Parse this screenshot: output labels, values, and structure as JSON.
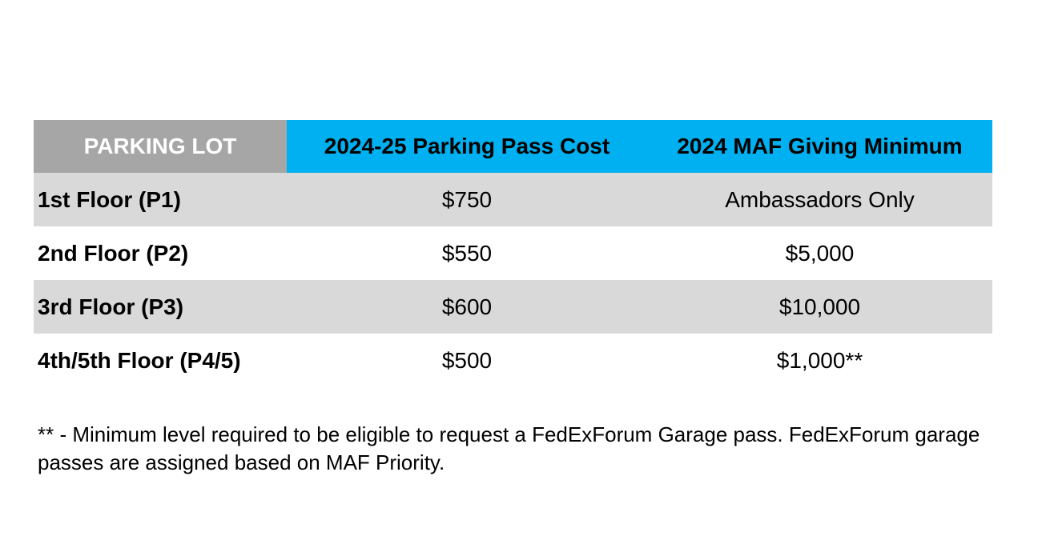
{
  "table": {
    "headers": {
      "lot": "PARKING LOT",
      "cost": "2024-25 Parking Pass Cost",
      "minimum": "2024 MAF Giving Minimum"
    },
    "rows": [
      {
        "lot": "1st Floor (P1)",
        "cost": "$750",
        "minimum": "Ambassadors Only"
      },
      {
        "lot": "2nd Floor (P2)",
        "cost": "$550",
        "minimum": "$5,000"
      },
      {
        "lot": "3rd Floor (P3)",
        "cost": "$600",
        "minimum": "$10,000"
      },
      {
        "lot": "4th/5th Floor (P4/5)",
        "cost": "$500",
        "minimum": "$1,000**"
      }
    ]
  },
  "footnote": {
    "text": "** - Minimum level required to be eligible to request a FedExForum Garage pass. FedExForum garage passes are assigned based on MAF Priority."
  },
  "colors": {
    "header_gray": "#a6a6a6",
    "header_blue": "#00b0f0",
    "row_shade": "#d9d9d9"
  }
}
